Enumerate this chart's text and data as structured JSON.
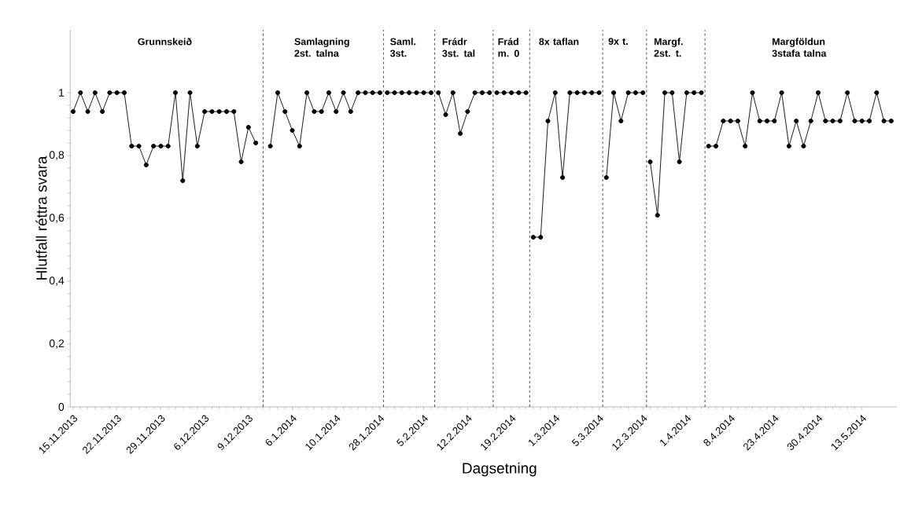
{
  "chart_data": {
    "type": "line",
    "xlabel": "Dagsetning",
    "ylabel": "Hlutfall  réttra svara",
    "marker": "circle",
    "categories": [
      "15.11.2013",
      null,
      null,
      null,
      null,
      null,
      "22.11.2013",
      null,
      null,
      null,
      null,
      null,
      "29.11.2013",
      null,
      null,
      null,
      null,
      null,
      "6.12.2013",
      null,
      null,
      null,
      null,
      null,
      "9.12.2013",
      null,
      null,
      null,
      null,
      null,
      "6.1.2014",
      null,
      null,
      null,
      null,
      null,
      "10.1.2014",
      null,
      null,
      null,
      null,
      null,
      "28.1.2014",
      null,
      null,
      null,
      null,
      null,
      "5.2.2014",
      null,
      null,
      null,
      null,
      null,
      "12.2.2014",
      null,
      null,
      null,
      null,
      null,
      "19.2.2014",
      null,
      null,
      null,
      null,
      null,
      "1.3.2014",
      null,
      null,
      null,
      null,
      null,
      "5.3.2014",
      null,
      null,
      null,
      null,
      null,
      "12.3.2014",
      null,
      null,
      null,
      null,
      null,
      "1.4.2014",
      null,
      null,
      null,
      null,
      null,
      "8.4.2014",
      null,
      null,
      null,
      null,
      null,
      "23.4.2014",
      null,
      null,
      null,
      null,
      null,
      "30.4.2014",
      null,
      null,
      null,
      null,
      null,
      "13.5.2014",
      null,
      null,
      null,
      null
    ],
    "ylim": [
      0,
      1.2
    ],
    "yticks": [
      0,
      {
        "value": 0.2,
        "label": "0,2"
      },
      {
        "value": 0.4,
        "label": "0,4"
      },
      {
        "value": 0.6,
        "label": "0,6"
      },
      {
        "value": 0.8,
        "label": "0,8"
      },
      1
    ],
    "series": [
      {
        "color": "#000000",
        "values": [
          0.94,
          1,
          0.94,
          1,
          0.94,
          1,
          1,
          1,
          0.83,
          0.83,
          0.77,
          0.83,
          0.83,
          0.83,
          1,
          0.72,
          1,
          0.83,
          0.94,
          0.94,
          0.94,
          0.94,
          0.94,
          0.78,
          0.89,
          0.84,
          null,
          null,
          null,
          null,
          null,
          null,
          null,
          null,
          null,
          null,
          null,
          null,
          null,
          null,
          null,
          null,
          null,
          null,
          null,
          null,
          null,
          null,
          null,
          null,
          null,
          null,
          null,
          null,
          null,
          null,
          null,
          null,
          null,
          null,
          null,
          null,
          null,
          null,
          null,
          null,
          null,
          null,
          null,
          null,
          null,
          null,
          null,
          null,
          null,
          null,
          null,
          null,
          null,
          null,
          null,
          null,
          null,
          null,
          null,
          null,
          null,
          null,
          null,
          null,
          null,
          null,
          null,
          null,
          null,
          null,
          null,
          null,
          null,
          null,
          null,
          null,
          null,
          null,
          null,
          null,
          null,
          null,
          null,
          null,
          null,
          null,
          null
        ]
      },
      {
        "color": "#000000",
        "values": [
          null,
          null,
          null,
          null,
          null,
          null,
          null,
          null,
          null,
          null,
          null,
          null,
          null,
          null,
          null,
          null,
          null,
          null,
          null,
          null,
          null,
          null,
          null,
          null,
          null,
          null,
          null,
          0.83,
          1,
          0.94,
          0.88,
          0.83,
          1,
          0.94,
          0.94,
          1,
          0.94,
          1,
          0.94,
          1,
          1,
          1,
          1,
          null,
          null,
          null,
          null,
          null,
          null,
          null,
          null,
          null,
          null,
          null,
          null,
          null,
          null,
          null,
          null,
          null,
          null,
          null,
          null,
          null,
          null,
          null,
          null,
          null,
          null,
          null,
          null,
          null,
          null,
          null,
          null,
          null,
          null,
          null,
          null,
          null,
          null,
          null,
          null,
          null,
          null,
          null,
          null,
          null,
          null,
          null,
          null,
          null,
          null,
          null,
          null,
          null,
          null,
          null,
          null,
          null,
          null,
          null,
          null,
          null,
          null,
          null,
          null,
          null,
          null,
          null,
          null,
          null,
          null
        ]
      },
      {
        "color": "#000000",
        "values": [
          null,
          null,
          null,
          null,
          null,
          null,
          null,
          null,
          null,
          null,
          null,
          null,
          null,
          null,
          null,
          null,
          null,
          null,
          null,
          null,
          null,
          null,
          null,
          null,
          null,
          null,
          null,
          null,
          null,
          null,
          null,
          null,
          null,
          null,
          null,
          null,
          null,
          null,
          null,
          null,
          null,
          null,
          null,
          1,
          1,
          1,
          1,
          1,
          1,
          1,
          null,
          null,
          null,
          null,
          null,
          null,
          null,
          null,
          null,
          null,
          null,
          null,
          null,
          null,
          null,
          null,
          null,
          null,
          null,
          null,
          null,
          null,
          null,
          null,
          null,
          null,
          null,
          null,
          null,
          null,
          null,
          null,
          null,
          null,
          null,
          null,
          null,
          null,
          null,
          null,
          null,
          null,
          null,
          null,
          null,
          null,
          null,
          null,
          null,
          null,
          null,
          null,
          null,
          null,
          null,
          null,
          null,
          null,
          null,
          null,
          null,
          null,
          null
        ]
      },
      {
        "color": "#000000",
        "values": [
          null,
          null,
          null,
          null,
          null,
          null,
          null,
          null,
          null,
          null,
          null,
          null,
          null,
          null,
          null,
          null,
          null,
          null,
          null,
          null,
          null,
          null,
          null,
          null,
          null,
          null,
          null,
          null,
          null,
          null,
          null,
          null,
          null,
          null,
          null,
          null,
          null,
          null,
          null,
          null,
          null,
          null,
          null,
          null,
          null,
          null,
          null,
          null,
          null,
          null,
          1,
          0.93,
          1,
          0.87,
          0.94,
          1,
          1,
          1,
          null,
          null,
          null,
          null,
          null,
          null,
          null,
          null,
          null,
          null,
          null,
          null,
          null,
          null,
          null,
          null,
          null,
          null,
          null,
          null,
          null,
          null,
          null,
          null,
          null,
          null,
          null,
          null,
          null,
          null,
          null,
          null,
          null,
          null,
          null,
          null,
          null,
          null,
          null,
          null,
          null,
          null,
          null,
          null,
          null,
          null,
          null,
          null,
          null,
          null,
          null,
          null,
          null,
          null,
          null
        ]
      },
      {
        "color": "#000000",
        "values": [
          null,
          null,
          null,
          null,
          null,
          null,
          null,
          null,
          null,
          null,
          null,
          null,
          null,
          null,
          null,
          null,
          null,
          null,
          null,
          null,
          null,
          null,
          null,
          null,
          null,
          null,
          null,
          null,
          null,
          null,
          null,
          null,
          null,
          null,
          null,
          null,
          null,
          null,
          null,
          null,
          null,
          null,
          null,
          null,
          null,
          null,
          null,
          null,
          null,
          null,
          null,
          null,
          null,
          null,
          null,
          null,
          null,
          null,
          1,
          1,
          1,
          1,
          1,
          null,
          null,
          null,
          null,
          null,
          null,
          null,
          null,
          null,
          null,
          null,
          null,
          null,
          null,
          null,
          null,
          null,
          null,
          null,
          null,
          null,
          null,
          null,
          null,
          null,
          null,
          null,
          null,
          null,
          null,
          null,
          null,
          null,
          null,
          null,
          null,
          null,
          null,
          null,
          null,
          null,
          null,
          null,
          null,
          null,
          null,
          null,
          null,
          null,
          null
        ]
      },
      {
        "color": "#000000",
        "values": [
          null,
          null,
          null,
          null,
          null,
          null,
          null,
          null,
          null,
          null,
          null,
          null,
          null,
          null,
          null,
          null,
          null,
          null,
          null,
          null,
          null,
          null,
          null,
          null,
          null,
          null,
          null,
          null,
          null,
          null,
          null,
          null,
          null,
          null,
          null,
          null,
          null,
          null,
          null,
          null,
          null,
          null,
          null,
          null,
          null,
          null,
          null,
          null,
          null,
          null,
          null,
          null,
          null,
          null,
          null,
          null,
          null,
          null,
          null,
          null,
          null,
          null,
          null,
          0.54,
          0.54,
          0.91,
          1,
          0.73,
          1,
          1,
          1,
          1,
          1,
          null,
          null,
          null,
          null,
          null,
          null,
          null,
          null,
          null,
          null,
          null,
          null,
          null,
          null,
          null,
          null,
          null,
          null,
          null,
          null,
          null,
          null,
          null,
          null,
          null,
          null,
          null,
          null,
          null,
          null,
          null,
          null,
          null,
          null,
          null,
          null,
          null,
          null,
          null,
          null
        ]
      },
      {
        "color": "#000000",
        "values": [
          null,
          null,
          null,
          null,
          null,
          null,
          null,
          null,
          null,
          null,
          null,
          null,
          null,
          null,
          null,
          null,
          null,
          null,
          null,
          null,
          null,
          null,
          null,
          null,
          null,
          null,
          null,
          null,
          null,
          null,
          null,
          null,
          null,
          null,
          null,
          null,
          null,
          null,
          null,
          null,
          null,
          null,
          null,
          null,
          null,
          null,
          null,
          null,
          null,
          null,
          null,
          null,
          null,
          null,
          null,
          null,
          null,
          null,
          null,
          null,
          null,
          null,
          null,
          null,
          null,
          null,
          null,
          null,
          null,
          null,
          null,
          null,
          null,
          0.73,
          1,
          0.91,
          1,
          1,
          1,
          null,
          null,
          null,
          null,
          null,
          null,
          null,
          null,
          null,
          null,
          null,
          null,
          null,
          null,
          null,
          null,
          null,
          null,
          null,
          null,
          null,
          null,
          null,
          null,
          null,
          null,
          null,
          null,
          null,
          null,
          null,
          null,
          null,
          null
        ]
      },
      {
        "color": "#000000",
        "values": [
          null,
          null,
          null,
          null,
          null,
          null,
          null,
          null,
          null,
          null,
          null,
          null,
          null,
          null,
          null,
          null,
          null,
          null,
          null,
          null,
          null,
          null,
          null,
          null,
          null,
          null,
          null,
          null,
          null,
          null,
          null,
          null,
          null,
          null,
          null,
          null,
          null,
          null,
          null,
          null,
          null,
          null,
          null,
          null,
          null,
          null,
          null,
          null,
          null,
          null,
          null,
          null,
          null,
          null,
          null,
          null,
          null,
          null,
          null,
          null,
          null,
          null,
          null,
          null,
          null,
          null,
          null,
          null,
          null,
          null,
          null,
          null,
          null,
          null,
          null,
          null,
          null,
          null,
          null,
          0.78,
          0.61,
          1,
          1,
          0.78,
          1,
          1,
          1,
          null,
          null,
          null,
          null,
          null,
          null,
          null,
          null,
          null,
          null,
          null,
          null,
          null,
          null,
          null,
          null,
          null,
          null,
          null,
          null,
          null,
          null,
          null,
          null,
          null,
          null
        ]
      },
      {
        "color": "#000000",
        "values": [
          null,
          null,
          null,
          null,
          null,
          null,
          null,
          null,
          null,
          null,
          null,
          null,
          null,
          null,
          null,
          null,
          null,
          null,
          null,
          null,
          null,
          null,
          null,
          null,
          null,
          null,
          null,
          null,
          null,
          null,
          null,
          null,
          null,
          null,
          null,
          null,
          null,
          null,
          null,
          null,
          null,
          null,
          null,
          null,
          null,
          null,
          null,
          null,
          null,
          null,
          null,
          null,
          null,
          null,
          null,
          null,
          null,
          null,
          null,
          null,
          null,
          null,
          null,
          null,
          null,
          null,
          null,
          null,
          null,
          null,
          null,
          null,
          null,
          null,
          null,
          null,
          null,
          null,
          null,
          null,
          null,
          null,
          null,
          null,
          null,
          null,
          null,
          0.83,
          0.83,
          0.91,
          0.91,
          0.91,
          0.83,
          1,
          0.91,
          0.91,
          0.91,
          1,
          0.83,
          0.91,
          0.83,
          0.91,
          1,
          0.91,
          0.91,
          0.91,
          1,
          0.91,
          0.91,
          0.91,
          1,
          0.91,
          0.91
        ]
      }
    ],
    "annotations": [
      "Grunnskeið",
      "Samlagning 2st. talna",
      "Saml. 3st.",
      "Frádr 3st. tal",
      "Frád m. 0",
      "8x taflan",
      "9x t.",
      "Margf. 2st. t.",
      "Margföldun 3stafa talna"
    ]
  }
}
